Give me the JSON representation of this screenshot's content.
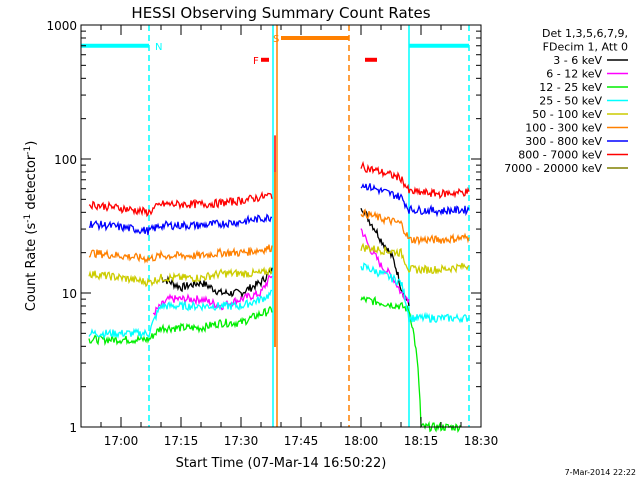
{
  "chart_data": {
    "type": "line",
    "title": "HESSI Observing Summary Count Rates",
    "xlabel": "Start Time (07-Mar-14 16:50:22)",
    "ylabel": "Count Rate (s^-1 detector^-1)",
    "ylabel_main": "Count Rate (s",
    "ylabel_sup1": "-1",
    "ylabel_mid": " detector",
    "ylabel_sup2": "-1",
    "ylabel_end": ")",
    "y_scale": "log",
    "xlim": [
      "16:50",
      "18:30"
    ],
    "ylim": [
      1,
      1000
    ],
    "x_ticks": [
      "17:00",
      "17:15",
      "17:30",
      "17:45",
      "18:00",
      "18:15",
      "18:30"
    ],
    "y_ticks": [
      "1",
      "10",
      "100",
      "1000"
    ],
    "legend_header": [
      "Det 1,3,5,6,7,9,",
      "FDecim 1, Att 0"
    ],
    "legend_position": "right",
    "series": [
      {
        "name": "3 - 6 keV",
        "color": "#000000",
        "x": [
          "17:10",
          "17:15",
          "17:20",
          "17:25",
          "17:30",
          "17:35",
          "17:38",
          "18:00",
          "18:02",
          "18:05",
          "18:08",
          "18:10",
          "18:12"
        ],
        "values": [
          13,
          11,
          12,
          10,
          10,
          12,
          15,
          45,
          35,
          25,
          18,
          11,
          8
        ]
      },
      {
        "name": "6 - 12 keV",
        "color": "#ff00ff",
        "x": [
          "17:08",
          "17:12",
          "17:15",
          "17:20",
          "17:25",
          "17:30",
          "17:35",
          "17:38",
          "18:00",
          "18:02",
          "18:05",
          "18:08",
          "18:10",
          "18:12"
        ],
        "values": [
          7,
          9,
          9,
          9,
          8,
          9,
          10,
          14,
          30,
          22,
          16,
          13,
          10,
          9
        ]
      },
      {
        "name": "12 - 25 keV",
        "color": "#00ee00",
        "x": [
          "16:52",
          "17:00",
          "17:07",
          "17:10",
          "17:15",
          "17:20",
          "17:25",
          "17:30",
          "17:35",
          "17:38",
          "18:00",
          "18:05",
          "18:10",
          "18:12",
          "18:15",
          "18:20",
          "18:25"
        ],
        "values": [
          4.5,
          4.5,
          4.5,
          5.5,
          5.5,
          5.5,
          6,
          6,
          7,
          7.5,
          9,
          8.5,
          8,
          7.5,
          1,
          1,
          1
        ]
      },
      {
        "name": "25 - 50 keV",
        "color": "#00ffff",
        "x": [
          "16:52",
          "17:00",
          "17:07",
          "17:10",
          "17:15",
          "17:20",
          "17:25",
          "17:30",
          "17:35",
          "17:38",
          "18:00",
          "18:05",
          "18:10",
          "18:12",
          "18:20",
          "18:27"
        ],
        "values": [
          5,
          5,
          5,
          8,
          8,
          8,
          8,
          8,
          9,
          10,
          16,
          14,
          12,
          6.5,
          6.5,
          6.5
        ]
      },
      {
        "name": "50 - 100 keV",
        "color": "#cccc00",
        "x": [
          "16:52",
          "17:00",
          "17:07",
          "17:10",
          "17:15",
          "17:20",
          "17:25",
          "17:30",
          "17:35",
          "17:38",
          "18:00",
          "18:05",
          "18:10",
          "18:12",
          "18:20",
          "18:27"
        ],
        "values": [
          14,
          13,
          12,
          13,
          13,
          13,
          14,
          14,
          14,
          15,
          22,
          21,
          20,
          15,
          15,
          16
        ]
      },
      {
        "name": "100 - 300 keV",
        "color": "#ff8000",
        "x": [
          "16:52",
          "17:00",
          "17:07",
          "17:10",
          "17:15",
          "17:20",
          "17:25",
          "17:30",
          "17:35",
          "17:38",
          "18:00",
          "18:05",
          "18:10",
          "18:12",
          "18:20",
          "18:27"
        ],
        "values": [
          20,
          19,
          18,
          19,
          19,
          19,
          20,
          20,
          21,
          22,
          40,
          36,
          33,
          25,
          25,
          26
        ]
      },
      {
        "name": "300 - 800 keV",
        "color": "#0000ff",
        "x": [
          "16:52",
          "17:00",
          "17:07",
          "17:10",
          "17:15",
          "17:20",
          "17:25",
          "17:30",
          "17:35",
          "17:38",
          "18:00",
          "18:05",
          "18:10",
          "18:12",
          "18:20",
          "18:27"
        ],
        "values": [
          33,
          31,
          29,
          32,
          32,
          32,
          33,
          34,
          36,
          37,
          65,
          58,
          52,
          42,
          41,
          42
        ]
      },
      {
        "name": "800 - 7000 keV",
        "color": "#ff0000",
        "x": [
          "16:52",
          "17:00",
          "17:07",
          "17:10",
          "17:15",
          "17:20",
          "17:25",
          "17:30",
          "17:35",
          "17:38",
          "18:00",
          "18:05",
          "18:10",
          "18:12",
          "18:20",
          "18:27"
        ],
        "values": [
          46,
          43,
          40,
          46,
          46,
          46,
          47,
          49,
          52,
          54,
          88,
          80,
          72,
          57,
          55,
          57
        ]
      },
      {
        "name": "7000 - 20000 keV",
        "color": "#808000",
        "x": [],
        "values": []
      }
    ],
    "spikes": [
      {
        "x": "17:38",
        "value": 150,
        "color": "#ff0000"
      },
      {
        "x": "17:38",
        "value": 80,
        "color": "#ff8000"
      }
    ],
    "flags": [
      {
        "label": "N",
        "color": "#00ffff",
        "level": 700,
        "segments": [
          [
            "16:50",
            "17:07"
          ],
          [
            "18:12",
            "18:27"
          ]
        ]
      },
      {
        "label": "S",
        "color": "#ff8000",
        "level": 800,
        "segments": [
          [
            "17:40",
            "17:57"
          ]
        ]
      },
      {
        "label": "F",
        "color": "#ff0000",
        "level": 550,
        "segments": [
          [
            "17:35",
            "17:37"
          ],
          [
            "18:01",
            "18:04"
          ]
        ]
      }
    ],
    "vlines": [
      {
        "x": "17:07",
        "color": "#00ffff",
        "style": "dashed"
      },
      {
        "x": "17:38",
        "color": "#00ffff",
        "style": "solid"
      },
      {
        "x": "17:39",
        "color": "#ff8000",
        "style": "solid"
      },
      {
        "x": "17:57",
        "color": "#ff8000",
        "style": "dashed"
      },
      {
        "x": "18:12",
        "color": "#00ffff",
        "style": "solid"
      },
      {
        "x": "18:27",
        "color": "#00ffff",
        "style": "dashed"
      }
    ]
  },
  "footer": {
    "timestamp": "7-Mar-2014 22:22"
  }
}
